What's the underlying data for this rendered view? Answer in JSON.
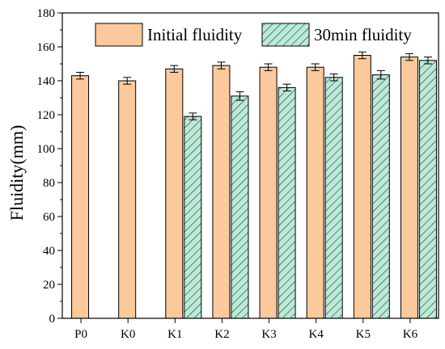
{
  "chart_data": {
    "type": "bar",
    "ylabel": "Fluidity(mm)",
    "xlabel": "",
    "ylim": [
      0,
      180
    ],
    "yticks": [
      0,
      20,
      40,
      60,
      80,
      100,
      120,
      140,
      160,
      180
    ],
    "categories": [
      "P0",
      "K0",
      "K1",
      "K2",
      "K3",
      "K4",
      "K5",
      "K6"
    ],
    "series": [
      {
        "name": "Initial fluidity",
        "color": "#FBC99C",
        "pattern": "solid",
        "values": [
          143,
          140,
          147,
          149,
          148,
          148,
          155,
          154
        ],
        "errors": [
          2,
          2,
          2,
          2,
          2,
          2,
          2,
          2
        ]
      },
      {
        "name": "30min fluidity",
        "color": "#B9EBD6",
        "pattern": "diagonal-hatch",
        "values": [
          null,
          null,
          119,
          131,
          136,
          142,
          143.5,
          152
        ],
        "errors": [
          null,
          null,
          2,
          2.5,
          2,
          2,
          2.5,
          2
        ]
      }
    ],
    "legend_position": "top-right",
    "grid": false
  }
}
